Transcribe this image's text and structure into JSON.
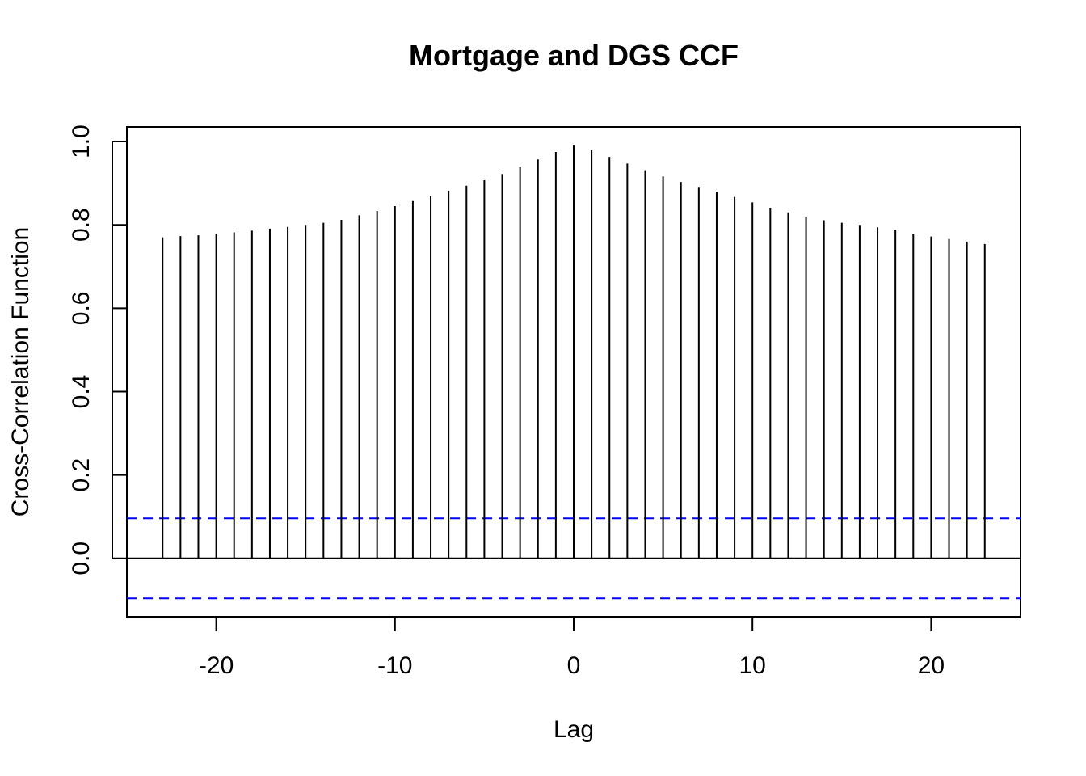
{
  "chart_data": {
    "type": "bar",
    "title": "Mortgage and DGS CCF",
    "xlabel": "Lag",
    "ylabel": "Cross-Correlation Function",
    "xlim": [
      -25,
      25
    ],
    "ylim": [
      -0.14,
      1.035
    ],
    "x_ticks": [
      "-20",
      "-10",
      "0",
      "10",
      "20"
    ],
    "y_ticks": [
      "0.0",
      "0.2",
      "0.4",
      "0.6",
      "0.8",
      "1.0"
    ],
    "confidence_bound": 0.096,
    "confidence_color": "#0000ff",
    "zero_line": true,
    "grid": false,
    "lags": [
      -23,
      -22,
      -21,
      -20,
      -19,
      -18,
      -17,
      -16,
      -15,
      -14,
      -13,
      -12,
      -11,
      -10,
      -9,
      -8,
      -7,
      -6,
      -5,
      -4,
      -3,
      -2,
      -1,
      0,
      1,
      2,
      3,
      4,
      5,
      6,
      7,
      8,
      9,
      10,
      11,
      12,
      13,
      14,
      15,
      16,
      17,
      18,
      19,
      20,
      21,
      22,
      23
    ],
    "values": [
      0.77,
      0.773,
      0.775,
      0.779,
      0.782,
      0.786,
      0.791,
      0.795,
      0.8,
      0.805,
      0.812,
      0.823,
      0.833,
      0.845,
      0.857,
      0.869,
      0.882,
      0.894,
      0.907,
      0.922,
      0.939,
      0.957,
      0.975,
      0.992,
      0.979,
      0.963,
      0.947,
      0.931,
      0.916,
      0.903,
      0.891,
      0.88,
      0.867,
      0.854,
      0.841,
      0.83,
      0.82,
      0.811,
      0.805,
      0.8,
      0.794,
      0.787,
      0.779,
      0.772,
      0.766,
      0.76,
      0.754
    ]
  }
}
